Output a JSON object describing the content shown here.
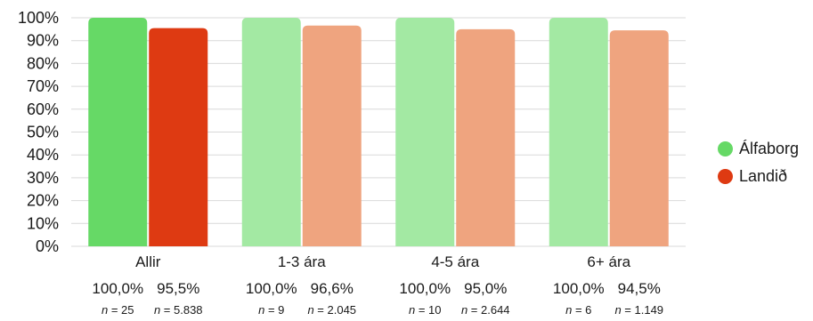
{
  "chart_data": {
    "type": "bar",
    "categories": [
      "Allir",
      "1-3 ára",
      "4-5 ára",
      "6+ ára"
    ],
    "series": [
      {
        "name": "Álfaborg",
        "values": [
          100.0,
          100.0,
          100.0,
          100.0
        ],
        "value_labels": [
          "100,0%",
          "100,0%",
          "100,0%",
          "100,0%"
        ],
        "n_labels": [
          "25",
          "9",
          "10",
          "6"
        ],
        "legend_color": "#66d966",
        "colors": [
          "#66d966",
          "#a3e9a3",
          "#a3e9a3",
          "#a3e9a3"
        ]
      },
      {
        "name": "Landið",
        "values": [
          95.5,
          96.6,
          95.0,
          94.5
        ],
        "value_labels": [
          "95,5%",
          "96,6%",
          "95,0%",
          "94,5%"
        ],
        "n_labels": [
          "5.838",
          "2.045",
          "2.644",
          "1.149"
        ],
        "legend_color": "#de3a12",
        "colors": [
          "#de3a12",
          "#efa47f",
          "#efa47f",
          "#efa47f"
        ]
      }
    ],
    "n_prefix": "n",
    "n_equals": " = ",
    "y_ticks": [
      "0%",
      "10%",
      "20%",
      "30%",
      "40%",
      "50%",
      "60%",
      "70%",
      "80%",
      "90%",
      "100%"
    ],
    "ylim": [
      0,
      100
    ],
    "grid": true,
    "legend_position": "right"
  }
}
